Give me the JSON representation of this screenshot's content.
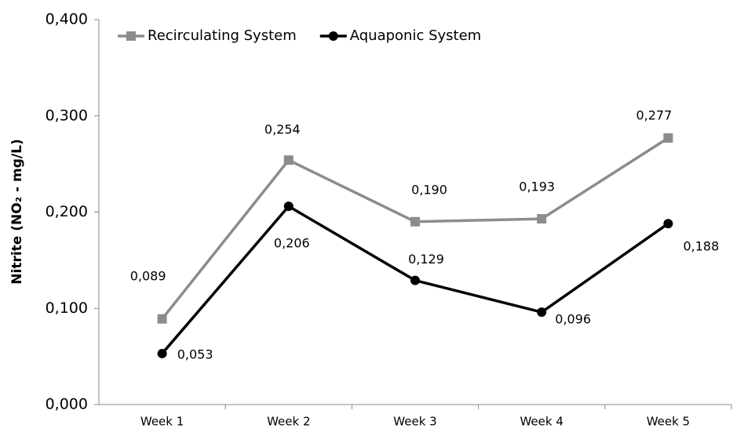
{
  "chart_data": {
    "type": "line",
    "y_label": "Nitrite (NO₂ - mg/L)",
    "categories": [
      "Week 1",
      "Week 2",
      "Week 3",
      "Week 4",
      "Week 5"
    ],
    "series": [
      {
        "name": "Recirculating System",
        "color": "#8c8c8c",
        "marker": "square",
        "values": [
          0.089,
          0.254,
          0.19,
          0.193,
          0.277
        ],
        "value_labels": [
          "0,089",
          "0,254",
          "0,190",
          "0,193",
          "0,277"
        ]
      },
      {
        "name": "Aquaponic System",
        "color": "#000000",
        "marker": "circle",
        "values": [
          0.053,
          0.206,
          0.129,
          0.096,
          0.188
        ],
        "value_labels": [
          "0,053",
          "0,206",
          "0,129",
          "0,096",
          "0,188"
        ]
      }
    ],
    "ylim": [
      0,
      0.4
    ],
    "yticks": [
      {
        "value": 0,
        "label": "0,000"
      },
      {
        "value": 0.1,
        "label": "0,100"
      },
      {
        "value": 0.2,
        "label": "0,200"
      },
      {
        "value": 0.3,
        "label": "0,300"
      },
      {
        "value": 0.4,
        "label": "0,400"
      }
    ],
    "legend": "top-left",
    "grid": false
  }
}
